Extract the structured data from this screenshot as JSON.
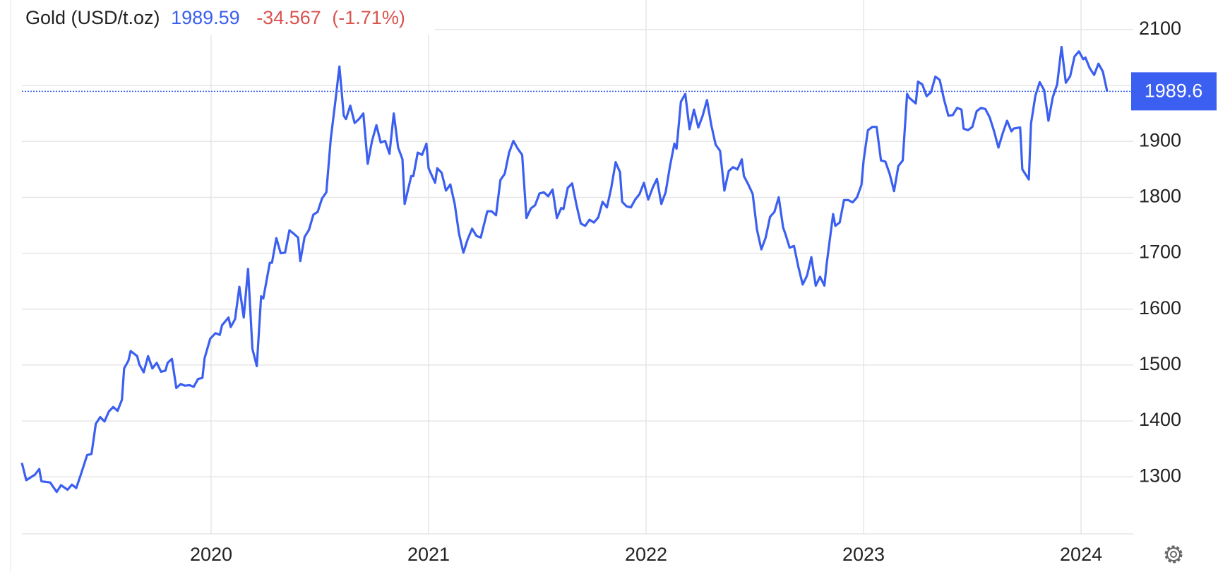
{
  "chart_data": {
    "type": "line",
    "name": "Gold (USD/t.oz)",
    "price": 1989.59,
    "change": -34.567,
    "change_pct": {
      "value": -1.71,
      "label": "(-1.71%)"
    },
    "last_price": {
      "value": 1989.59,
      "label": "1989.6"
    },
    "xlim": [
      2019.13,
      2024.24
    ],
    "xticks": [
      2020,
      2021,
      2022,
      2023,
      2024
    ],
    "ylim": [
      1198,
      2153
    ],
    "yticks": [
      1300,
      1400,
      1500,
      1600,
      1700,
      1800,
      1900,
      2000,
      2100
    ],
    "grid": true,
    "x": [
      2019.13,
      2019.15,
      2019.19,
      2019.21,
      2019.22,
      2019.26,
      2019.29,
      2019.31,
      2019.34,
      2019.36,
      2019.38,
      2019.4,
      2019.43,
      2019.45,
      2019.47,
      2019.49,
      2019.51,
      2019.53,
      2019.55,
      2019.57,
      2019.59,
      2019.6,
      2019.62,
      2019.63,
      2019.66,
      2019.67,
      2019.69,
      2019.71,
      2019.73,
      2019.75,
      2019.77,
      2019.79,
      2019.8,
      2019.82,
      2019.84,
      2019.86,
      2019.88,
      2019.9,
      2019.92,
      2019.94,
      2019.96,
      2019.97,
      2019.996,
      2020.02,
      2020.04,
      2020.05,
      2020.08,
      2020.09,
      2020.11,
      2020.13,
      2020.15,
      2020.17,
      2020.19,
      2020.21,
      2020.23,
      2020.24,
      2020.27,
      2020.28,
      2020.3,
      2020.32,
      2020.34,
      2020.36,
      2020.38,
      2020.4,
      2020.41,
      2020.43,
      2020.45,
      2020.47,
      2020.49,
      2020.51,
      2020.53,
      2020.55,
      2020.57,
      2020.59,
      2020.61,
      2020.62,
      2020.64,
      2020.66,
      2020.68,
      2020.7,
      2020.72,
      2020.74,
      2020.76,
      2020.78,
      2020.8,
      2020.82,
      2020.84,
      2020.86,
      2020.88,
      2020.89,
      2020.92,
      2020.93,
      2020.95,
      2020.97,
      2020.99,
      2021.0,
      2021.03,
      2021.04,
      2021.06,
      2021.08,
      2021.1,
      2021.12,
      2021.14,
      2021.16,
      2021.18,
      2021.2,
      2021.22,
      2021.24,
      2021.25,
      2021.27,
      2021.29,
      2021.31,
      2021.33,
      2021.35,
      2021.37,
      2021.39,
      2021.41,
      2021.43,
      2021.45,
      2021.47,
      2021.49,
      2021.51,
      2021.53,
      2021.55,
      2021.57,
      2021.59,
      2021.61,
      2021.62,
      2021.64,
      2021.66,
      2021.68,
      2021.7,
      2021.72,
      2021.74,
      2021.76,
      2021.78,
      2021.8,
      2021.82,
      2021.84,
      2021.86,
      2021.88,
      2021.89,
      2021.91,
      2021.93,
      2021.95,
      2021.97,
      2021.99,
      2022.01,
      2022.03,
      2022.05,
      2022.07,
      2022.09,
      2022.11,
      2022.13,
      2022.14,
      2022.16,
      2022.18,
      2022.2,
      2022.22,
      2022.24,
      2022.26,
      2022.28,
      2022.3,
      2022.32,
      2022.34,
      2022.36,
      2022.38,
      2022.4,
      2022.42,
      2022.44,
      2022.45,
      2022.47,
      2022.49,
      2022.51,
      2022.53,
      2022.55,
      2022.57,
      2022.59,
      2022.61,
      2022.63,
      2022.64,
      2022.66,
      2022.68,
      2022.7,
      2022.72,
      2022.74,
      2022.76,
      2022.78,
      2022.8,
      2022.82,
      2022.83,
      2022.86,
      2022.87,
      2022.89,
      2022.91,
      2022.93,
      2022.95,
      2022.97,
      2022.99,
      2023.0,
      2023.02,
      2023.04,
      2023.06,
      2023.08,
      2023.1,
      2023.12,
      2023.14,
      2023.16,
      2023.18,
      2023.2,
      2023.21,
      2023.24,
      2023.25,
      2023.27,
      2023.29,
      2023.31,
      2023.33,
      2023.35,
      2023.37,
      2023.39,
      2023.41,
      2023.43,
      2023.45,
      2023.46,
      2023.48,
      2023.5,
      2023.52,
      2023.54,
      2023.56,
      2023.58,
      2023.6,
      2023.62,
      2023.64,
      2023.66,
      2023.68,
      2023.69,
      2023.72,
      2023.73,
      2023.76,
      2023.77,
      2023.79,
      2023.81,
      2023.83,
      2023.85,
      2023.87,
      2023.89,
      2023.91,
      2023.93,
      2023.95,
      2023.97,
      2023.99,
      2024.01,
      2024.02,
      2024.04,
      2024.06,
      2024.08,
      2024.1,
      2024.12
    ],
    "series": [
      {
        "name": "Gold (USD/t.oz)",
        "color": "#3b5ff0",
        "values": [
          1325,
          1294,
          1304,
          1314,
          1292,
          1290,
          1273,
          1285,
          1277,
          1286,
          1280,
          1303,
          1339,
          1341,
          1395,
          1407,
          1399,
          1417,
          1425,
          1418,
          1438,
          1494,
          1508,
          1525,
          1516,
          1501,
          1487,
          1516,
          1494,
          1504,
          1488,
          1490,
          1504,
          1511,
          1459,
          1466,
          1463,
          1464,
          1461,
          1475,
          1477,
          1512,
          1547,
          1557,
          1554,
          1571,
          1585,
          1568,
          1582,
          1640,
          1585,
          1672,
          1529,
          1498,
          1623,
          1619,
          1683,
          1683,
          1727,
          1700,
          1701,
          1741,
          1735,
          1728,
          1686,
          1729,
          1742,
          1769,
          1774,
          1798,
          1809,
          1904,
          1968,
          2034,
          1946,
          1940,
          1964,
          1933,
          1940,
          1950,
          1860,
          1901,
          1929,
          1898,
          1901,
          1878,
          1950,
          1889,
          1868,
          1788,
          1838,
          1838,
          1880,
          1876,
          1896,
          1852,
          1826,
          1852,
          1844,
          1812,
          1823,
          1788,
          1735,
          1701,
          1725,
          1744,
          1731,
          1728,
          1744,
          1775,
          1775,
          1768,
          1831,
          1842,
          1880,
          1901,
          1887,
          1876,
          1763,
          1780,
          1786,
          1807,
          1809,
          1802,
          1814,
          1763,
          1781,
          1779,
          1817,
          1825,
          1786,
          1753,
          1749,
          1760,
          1755,
          1764,
          1792,
          1782,
          1817,
          1863,
          1845,
          1792,
          1784,
          1782,
          1796,
          1806,
          1826,
          1796,
          1817,
          1833,
          1788,
          1809,
          1856,
          1896,
          1887,
          1971,
          1985,
          1922,
          1957,
          1925,
          1946,
          1974,
          1929,
          1894,
          1883,
          1812,
          1847,
          1854,
          1850,
          1868,
          1838,
          1823,
          1806,
          1742,
          1707,
          1728,
          1765,
          1774,
          1800,
          1746,
          1735,
          1710,
          1713,
          1676,
          1644,
          1660,
          1693,
          1642,
          1658,
          1642,
          1680,
          1770,
          1749,
          1755,
          1795,
          1795,
          1791,
          1800,
          1822,
          1866,
          1920,
          1926,
          1926,
          1866,
          1864,
          1842,
          1811,
          1856,
          1866,
          1985,
          1978,
          1968,
          2007,
          2002,
          1981,
          1988,
          2016,
          2010,
          1975,
          1946,
          1947,
          1960,
          1957,
          1923,
          1920,
          1926,
          1954,
          1960,
          1958,
          1943,
          1918,
          1889,
          1915,
          1937,
          1918,
          1923,
          1925,
          1850,
          1832,
          1932,
          1982,
          2006,
          1992,
          1937,
          1979,
          2002,
          2069,
          2005,
          2017,
          2052,
          2061,
          2047,
          2050,
          2031,
          2019,
          2039,
          2025,
          1989.59
        ]
      }
    ]
  }
}
